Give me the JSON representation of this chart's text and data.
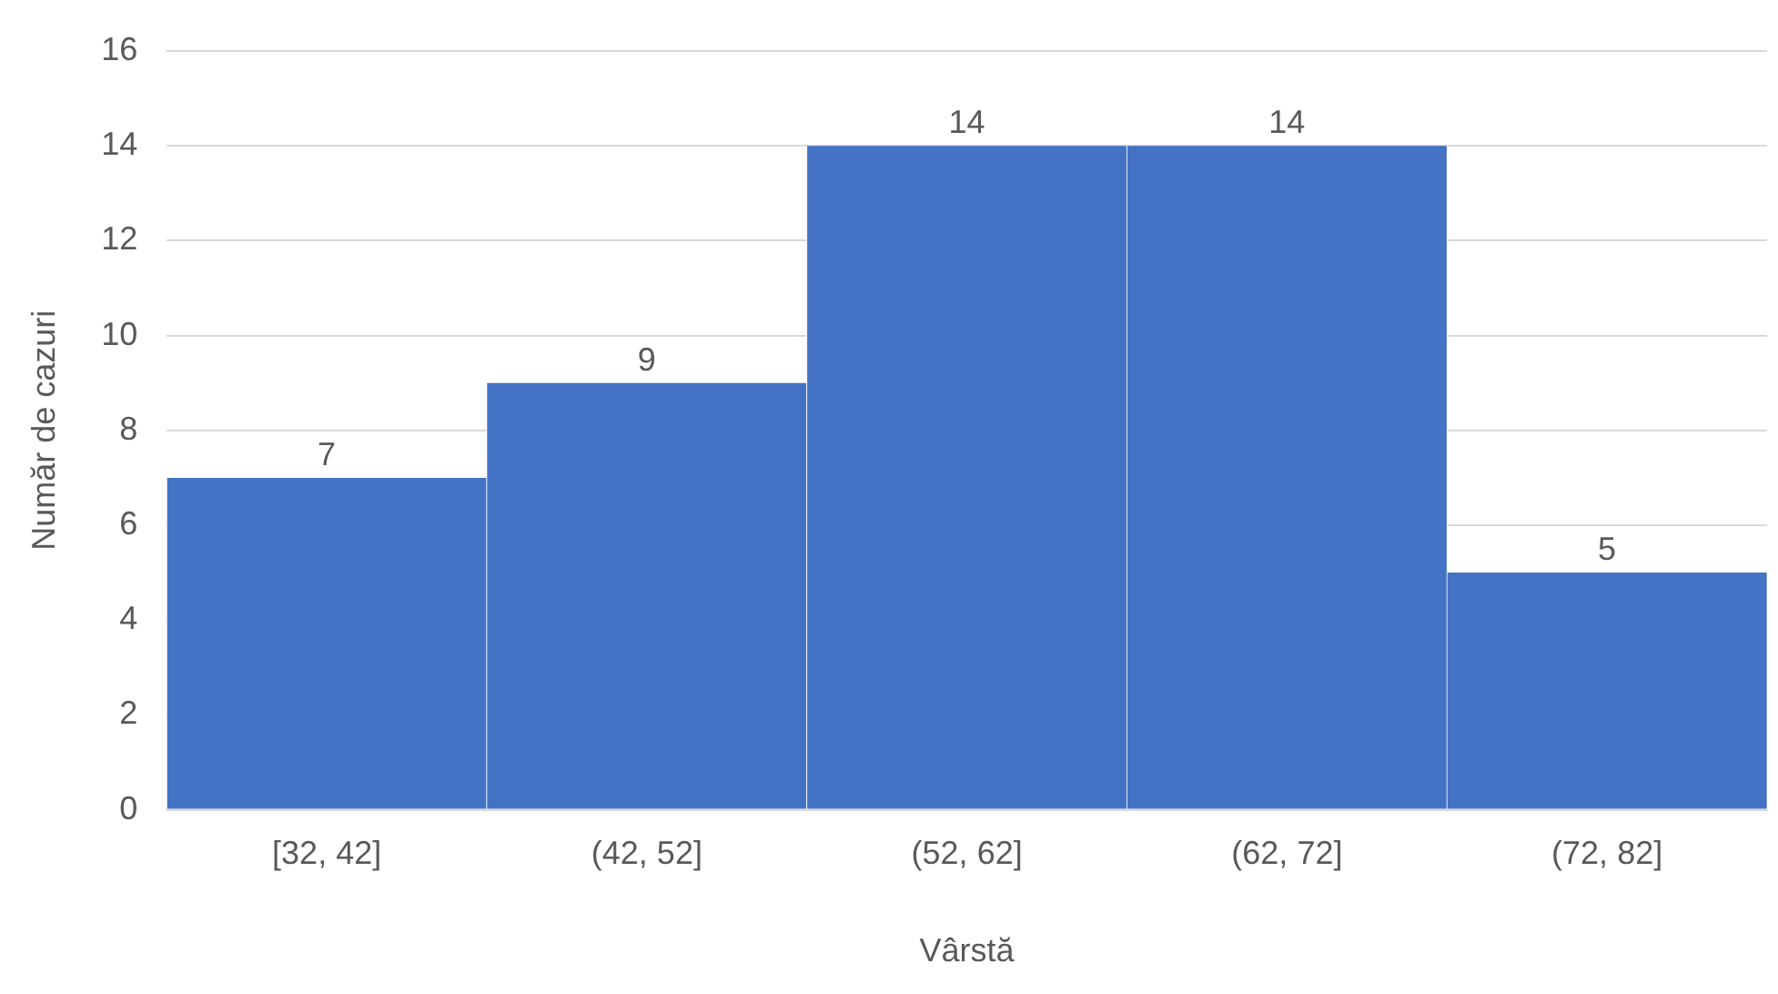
{
  "chart_data": {
    "type": "bar",
    "xlabel": "Vârstă",
    "ylabel": "Număr de cazuri",
    "categories": [
      "[32, 42]",
      "(42, 52]",
      "(52, 62]",
      "(62, 72]",
      "(72, 82]"
    ],
    "values": [
      7,
      9,
      14,
      14,
      5
    ],
    "color": "#4472c4",
    "ylim": [
      0,
      16
    ],
    "yticks": [
      0,
      2,
      4,
      6,
      8,
      10,
      12,
      14,
      16
    ],
    "grid": "y",
    "data_labels": true,
    "legend": false
  }
}
